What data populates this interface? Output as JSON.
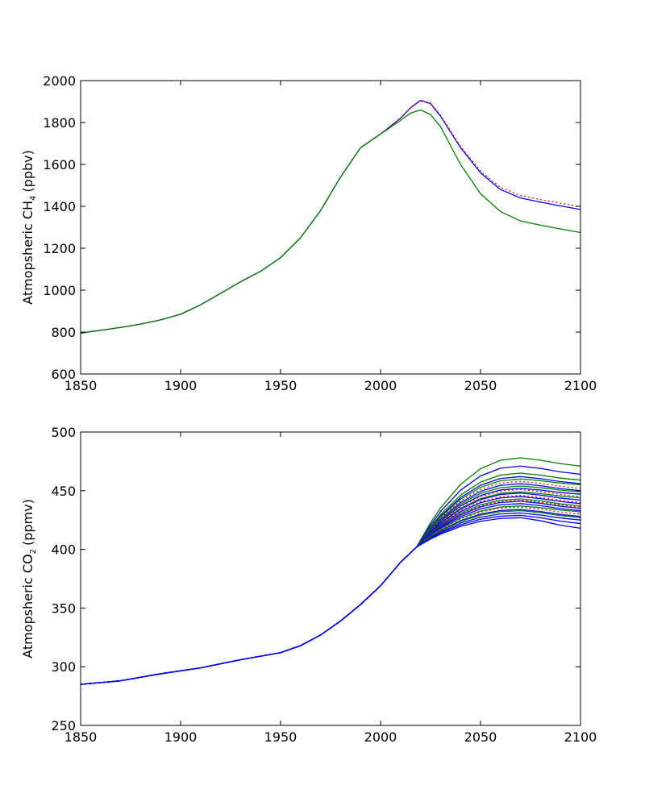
{
  "chart_data": [
    {
      "type": "line",
      "title": "",
      "xlabel": "",
      "ylabel": {
        "prefix": "Atmopsheric CH",
        "subscript": "4",
        "suffix": "(ppbv)"
      },
      "xlim": [
        1850,
        2100
      ],
      "ylim": [
        600,
        2000
      ],
      "xticks": [
        1850,
        1900,
        1950,
        2000,
        2050,
        2100
      ],
      "yticks": [
        600,
        800,
        1000,
        1200,
        1400,
        1600,
        1800,
        2000
      ],
      "grid": false,
      "legend": "none",
      "colors": {
        "green": "#008000",
        "blue": "#0000ff",
        "red": "#ff0000"
      },
      "series": [
        {
          "color": "#0000ff",
          "style": "solid",
          "x": [
            1850,
            1870,
            1880,
            1890,
            1900,
            1910,
            1920,
            1930,
            1940,
            1950,
            1960,
            1970,
            1980,
            1990,
            2000,
            2010,
            2015,
            2020,
            2025,
            2030,
            2040,
            2050,
            2060,
            2070,
            2080,
            2090,
            2100
          ],
          "y": [
            795,
            822,
            838,
            858,
            885,
            930,
            985,
            1040,
            1090,
            1155,
            1250,
            1380,
            1540,
            1680,
            1745,
            1820,
            1870,
            1905,
            1890,
            1830,
            1680,
            1560,
            1480,
            1440,
            1420,
            1402,
            1385
          ]
        },
        {
          "color": "#ff0000",
          "style": "dotted",
          "x": [
            1850,
            1870,
            1880,
            1890,
            1900,
            1910,
            1920,
            1930,
            1940,
            1950,
            1960,
            1970,
            1980,
            1990,
            2000,
            2010,
            2015,
            2020,
            2025,
            2030,
            2040,
            2050,
            2060,
            2070,
            2080,
            2090,
            2100
          ],
          "y": [
            795,
            822,
            838,
            858,
            885,
            930,
            985,
            1040,
            1090,
            1155,
            1250,
            1380,
            1540,
            1680,
            1745,
            1822,
            1872,
            1907,
            1893,
            1835,
            1686,
            1568,
            1490,
            1452,
            1432,
            1415,
            1398
          ]
        },
        {
          "color": "#008000",
          "style": "solid",
          "x": [
            1850,
            1870,
            1880,
            1890,
            1900,
            1910,
            1920,
            1930,
            1940,
            1950,
            1960,
            1970,
            1980,
            1990,
            2000,
            2010,
            2015,
            2020,
            2025,
            2030,
            2040,
            2050,
            2060,
            2070,
            2080,
            2090,
            2100
          ],
          "y": [
            795,
            822,
            838,
            858,
            885,
            930,
            985,
            1040,
            1090,
            1155,
            1250,
            1380,
            1540,
            1680,
            1745,
            1810,
            1845,
            1860,
            1838,
            1780,
            1600,
            1460,
            1375,
            1330,
            1310,
            1292,
            1275
          ]
        }
      ]
    },
    {
      "type": "line",
      "title": "",
      "xlabel": "",
      "ylabel": {
        "prefix": "Atmopsheric CO",
        "subscript": "2",
        "suffix": "(ppmv)"
      },
      "xlim": [
        1850,
        2100
      ],
      "ylim": [
        250,
        500
      ],
      "xticks": [
        1850,
        1900,
        1950,
        2000,
        2050,
        2100
      ],
      "yticks": [
        250,
        300,
        350,
        400,
        450,
        500
      ],
      "grid": false,
      "legend": "none",
      "colors": {
        "green": "#008000",
        "blue": "#0000ff",
        "red": "#ff0000"
      },
      "history": {
        "x": [
          1850,
          1870,
          1890,
          1910,
          1930,
          1940,
          1950,
          1960,
          1970,
          1980,
          1990,
          2000,
          2010,
          2018
        ],
        "y": [
          285,
          288,
          294,
          299,
          306,
          309,
          312,
          318,
          327,
          339,
          353,
          369,
          389,
          402
        ]
      },
      "future_x": [
        2018,
        2025,
        2030,
        2040,
        2050,
        2060,
        2070,
        2080,
        2090,
        2100
      ],
      "ensemble": [
        {
          "color": "#008000",
          "style": "solid",
          "y2070": 478,
          "y2100": 471
        },
        {
          "color": "#0000ff",
          "style": "solid",
          "y2070": 471,
          "y2100": 464
        },
        {
          "color": "#008000",
          "style": "solid",
          "y2070": 465,
          "y2100": 459
        },
        {
          "color": "#0000ff",
          "style": "solid",
          "y2070": 462,
          "y2100": 456
        },
        {
          "color": "#008000",
          "style": "solid",
          "y2070": 460,
          "y2100": 455
        },
        {
          "color": "#ff0000",
          "style": "dotted",
          "y2070": 458,
          "y2100": 452
        },
        {
          "color": "#0000ff",
          "style": "solid",
          "y2070": 456,
          "y2100": 450
        },
        {
          "color": "#008000",
          "style": "solid",
          "y2070": 454,
          "y2100": 449
        },
        {
          "color": "#0000ff",
          "style": "solid",
          "y2070": 452,
          "y2100": 447
        },
        {
          "color": "#ff0000",
          "style": "dotted",
          "y2070": 451,
          "y2100": 445
        },
        {
          "color": "#008000",
          "style": "solid",
          "y2070": 449,
          "y2100": 444
        },
        {
          "color": "#0000ff",
          "style": "solid",
          "y2070": 448,
          "y2100": 442
        },
        {
          "color": "#ff0000",
          "style": "dotted",
          "y2070": 446,
          "y2100": 440
        },
        {
          "color": "#0000ff",
          "style": "solid",
          "y2070": 445,
          "y2100": 439
        },
        {
          "color": "#008000",
          "style": "solid",
          "y2070": 443,
          "y2100": 437
        },
        {
          "color": "#ff0000",
          "style": "dotted",
          "y2070": 442,
          "y2100": 436
        },
        {
          "color": "#0000ff",
          "style": "solid",
          "y2070": 441,
          "y2100": 435
        },
        {
          "color": "#0000ff",
          "style": "solid",
          "y2070": 439,
          "y2100": 433
        },
        {
          "color": "#008000",
          "style": "solid",
          "y2070": 437,
          "y2100": 432
        },
        {
          "color": "#ff0000",
          "style": "dotted",
          "y2070": 436,
          "y2100": 430
        },
        {
          "color": "#0000ff",
          "style": "solid",
          "y2070": 434,
          "y2100": 428
        },
        {
          "color": "#008000",
          "style": "solid",
          "y2070": 433,
          "y2100": 427
        },
        {
          "color": "#0000ff",
          "style": "solid",
          "y2070": 431,
          "y2100": 425
        },
        {
          "color": "#0000ff",
          "style": "solid",
          "y2070": 429,
          "y2100": 422
        },
        {
          "color": "#0000ff",
          "style": "solid",
          "y2070": 427,
          "y2100": 418
        }
      ]
    }
  ]
}
